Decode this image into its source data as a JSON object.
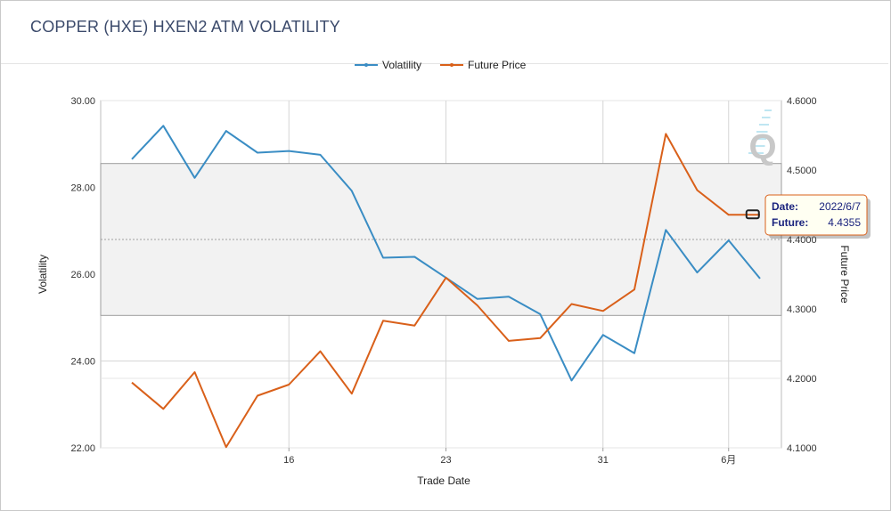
{
  "header": {
    "title": "COPPER (HXE) HXEN2 ATM VOLATILITY"
  },
  "legend": {
    "placement": "top-center"
  },
  "chart_data": {
    "type": "line",
    "title": "COPPER (HXE) HXEN2 ATM VOLATILITY",
    "xlabel": "Trade Date",
    "ylabel": "Volatility",
    "y2label": "Future Price",
    "x_tick_labels": [
      "16",
      "23",
      "31",
      "6月"
    ],
    "y_ticks": [
      "22.00",
      "24.00",
      "26.00",
      "28.00",
      "30.00"
    ],
    "y2_ticks": [
      "4.1000",
      "4.2000",
      "4.3000",
      "4.4000",
      "4.5000",
      "4.6000"
    ],
    "ylim": [
      22,
      30
    ],
    "y2lim": [
      4.1,
      4.6
    ],
    "grid": true,
    "reference_band": {
      "axis": "y",
      "range": [
        25.05,
        28.55
      ],
      "midline": 26.8
    },
    "series": [
      {
        "name": "Volatility",
        "axis": "left",
        "color": "#3a8dc4",
        "values": [
          28.65,
          29.42,
          28.22,
          29.3,
          28.8,
          28.84,
          28.75,
          27.92,
          26.38,
          26.4,
          25.92,
          25.43,
          25.48,
          25.08,
          23.55,
          24.6,
          24.18,
          27.02,
          26.04,
          26.78,
          25.9
        ]
      },
      {
        "name": "Future Price",
        "axis": "right",
        "color": "#d9601a",
        "values": [
          4.194,
          4.156,
          4.209,
          4.101,
          4.175,
          4.191,
          4.239,
          4.178,
          4.283,
          4.276,
          4.345,
          4.305,
          4.254,
          4.258,
          4.307,
          4.297,
          4.328,
          4.552,
          4.471,
          4.4355,
          4.4355
        ]
      }
    ]
  },
  "tooltip": {
    "date_label": "Date:",
    "date_value": "2022/6/7",
    "future_label": "Future:",
    "future_value": "4.4355"
  },
  "watermark": {
    "text": "Q"
  }
}
